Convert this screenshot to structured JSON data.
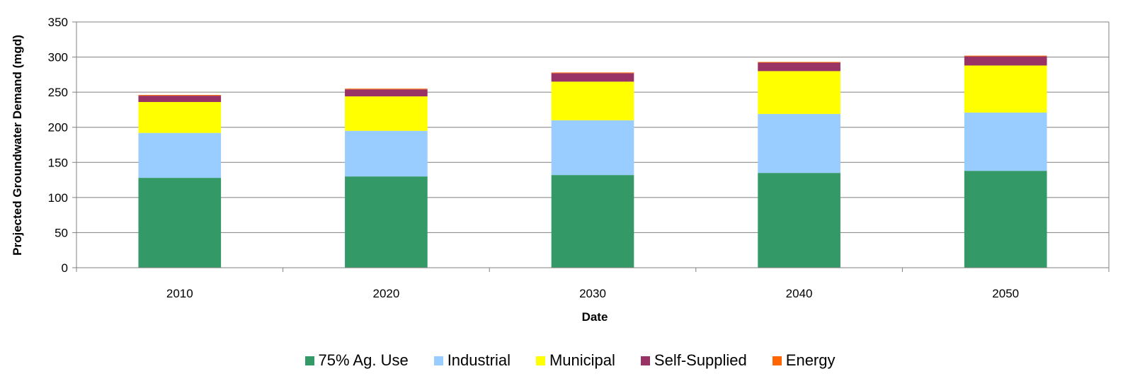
{
  "chart_data": {
    "type": "bar",
    "stacked": true,
    "categories": [
      "2010",
      "2020",
      "2030",
      "2040",
      "2050"
    ],
    "series": [
      {
        "name": "75% Ag. Use",
        "color": "#339966",
        "values": [
          128,
          130,
          132,
          135,
          138
        ]
      },
      {
        "name": "Industrial",
        "color": "#99CCFF",
        "values": [
          64,
          65,
          78,
          84,
          83
        ]
      },
      {
        "name": "Municipal",
        "color": "#FFFF00",
        "values": [
          44,
          49,
          55,
          61,
          67
        ]
      },
      {
        "name": "Self-Supplied",
        "color": "#993366",
        "values": [
          9,
          10,
          12,
          12,
          13
        ]
      },
      {
        "name": "Energy",
        "color": "#FF6600",
        "values": [
          1,
          1,
          1,
          1,
          1
        ]
      }
    ],
    "xlabel": "Date",
    "ylabel": "Projected Groundwater Demand (mgd)",
    "ylim": [
      0,
      350
    ],
    "yticks": [
      "0",
      "50",
      "100",
      "150",
      "200",
      "250",
      "300",
      "350"
    ],
    "grid": true,
    "legend_position": "bottom"
  }
}
